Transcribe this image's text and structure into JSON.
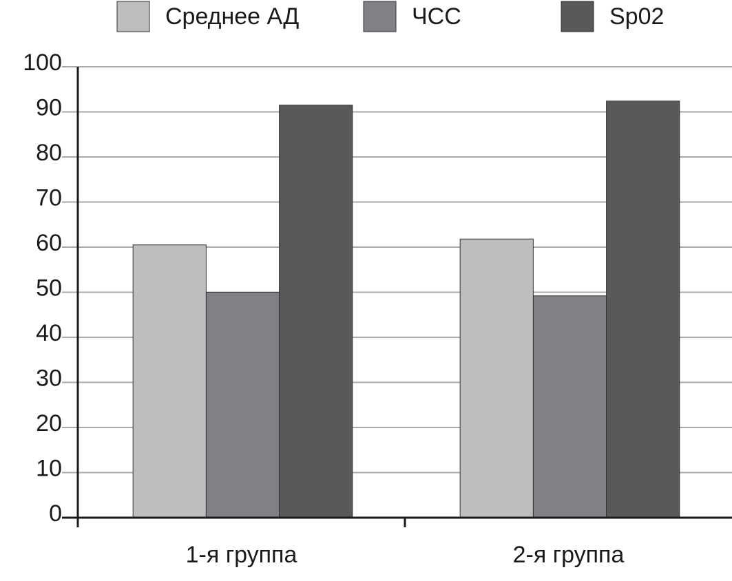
{
  "chart_data": {
    "type": "bar",
    "categories": [
      "1-я группа",
      "2-я группа"
    ],
    "series": [
      {
        "name": "Среднее АД",
        "color": "#bdbec0",
        "values": [
          60.5,
          61.8
        ]
      },
      {
        "name": "ЧСС",
        "color": "#808184",
        "values": [
          50,
          49.2
        ]
      },
      {
        "name": "Sp02",
        "color": "#58595b",
        "values": [
          91.5,
          92.4
        ]
      }
    ],
    "ylim": [
      0,
      100
    ],
    "yticks": [
      0,
      10,
      20,
      30,
      40,
      50,
      60,
      70,
      80,
      90,
      100
    ],
    "grid": true
  }
}
